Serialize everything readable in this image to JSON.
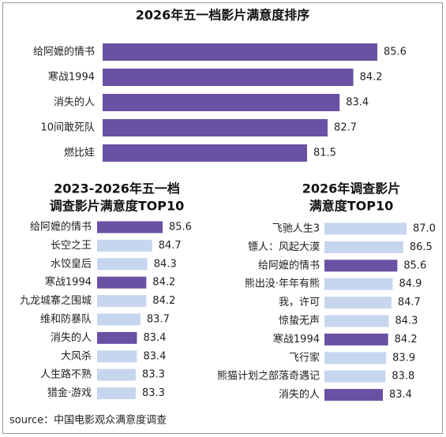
{
  "chart_data": [
    {
      "type": "bar",
      "orientation": "horizontal",
      "title": [
        "2026年五一档影片满意度排序"
      ],
      "categories": [
        "给阿嬷的情书",
        "寒战1994",
        "消失的人",
        "10间敢死队",
        "燃比娃"
      ],
      "values": [
        85.6,
        84.2,
        83.4,
        82.7,
        81.5
      ],
      "colors": [
        "#6a51a3",
        "#6a51a3",
        "#6a51a3",
        "#6a51a3",
        "#6a51a3"
      ]
    },
    {
      "type": "bar",
      "orientation": "horizontal",
      "title": [
        "2023-2026年五一档",
        "调查影片满意度TOP10"
      ],
      "categories": [
        "给阿嬷的情书",
        "长空之王",
        "水饺皇后",
        "寒战1994",
        "九龙城寨之围城",
        "维和防暴队",
        "消失的人",
        "大风杀",
        "人生路不熟",
        "猎金·游戏"
      ],
      "values": [
        85.6,
        84.7,
        84.3,
        84.2,
        84.2,
        83.7,
        83.4,
        83.4,
        83.3,
        83.3
      ],
      "colors": [
        "#6a51a3",
        "#c6d6ef",
        "#c6d6ef",
        "#6a51a3",
        "#c6d6ef",
        "#c6d6ef",
        "#6a51a3",
        "#c6d6ef",
        "#c6d6ef",
        "#c6d6ef"
      ]
    },
    {
      "type": "bar",
      "orientation": "horizontal",
      "title": [
        "2026年调查影片",
        "满意度TOP10"
      ],
      "categories": [
        "飞驰人生3",
        "镖人：风起大漠",
        "给阿嬷的情书",
        "熊出没·年年有熊",
        "我，许可",
        "惊蛰无声",
        "寒战1994",
        "飞行家",
        "熊猫计划之部落奇遇记",
        "消失的人"
      ],
      "values": [
        87,
        86.5,
        85.6,
        84.9,
        84.7,
        84.3,
        84.2,
        83.9,
        83.8,
        83.4
      ],
      "value_labels": [
        "87.0",
        "86.5",
        "85.6",
        "84.9",
        "84.7",
        "84.3",
        "84.2",
        "83.9",
        "83.8",
        "83.4"
      ],
      "colors": [
        "#c6d6ef",
        "#c6d6ef",
        "#6a51a3",
        "#c6d6ef",
        "#c6d6ef",
        "#c6d6ef",
        "#6a51a3",
        "#c6d6ef",
        "#c6d6ef",
        "#6a51a3"
      ]
    }
  ],
  "source": "source：中国电影观众满意度调查"
}
